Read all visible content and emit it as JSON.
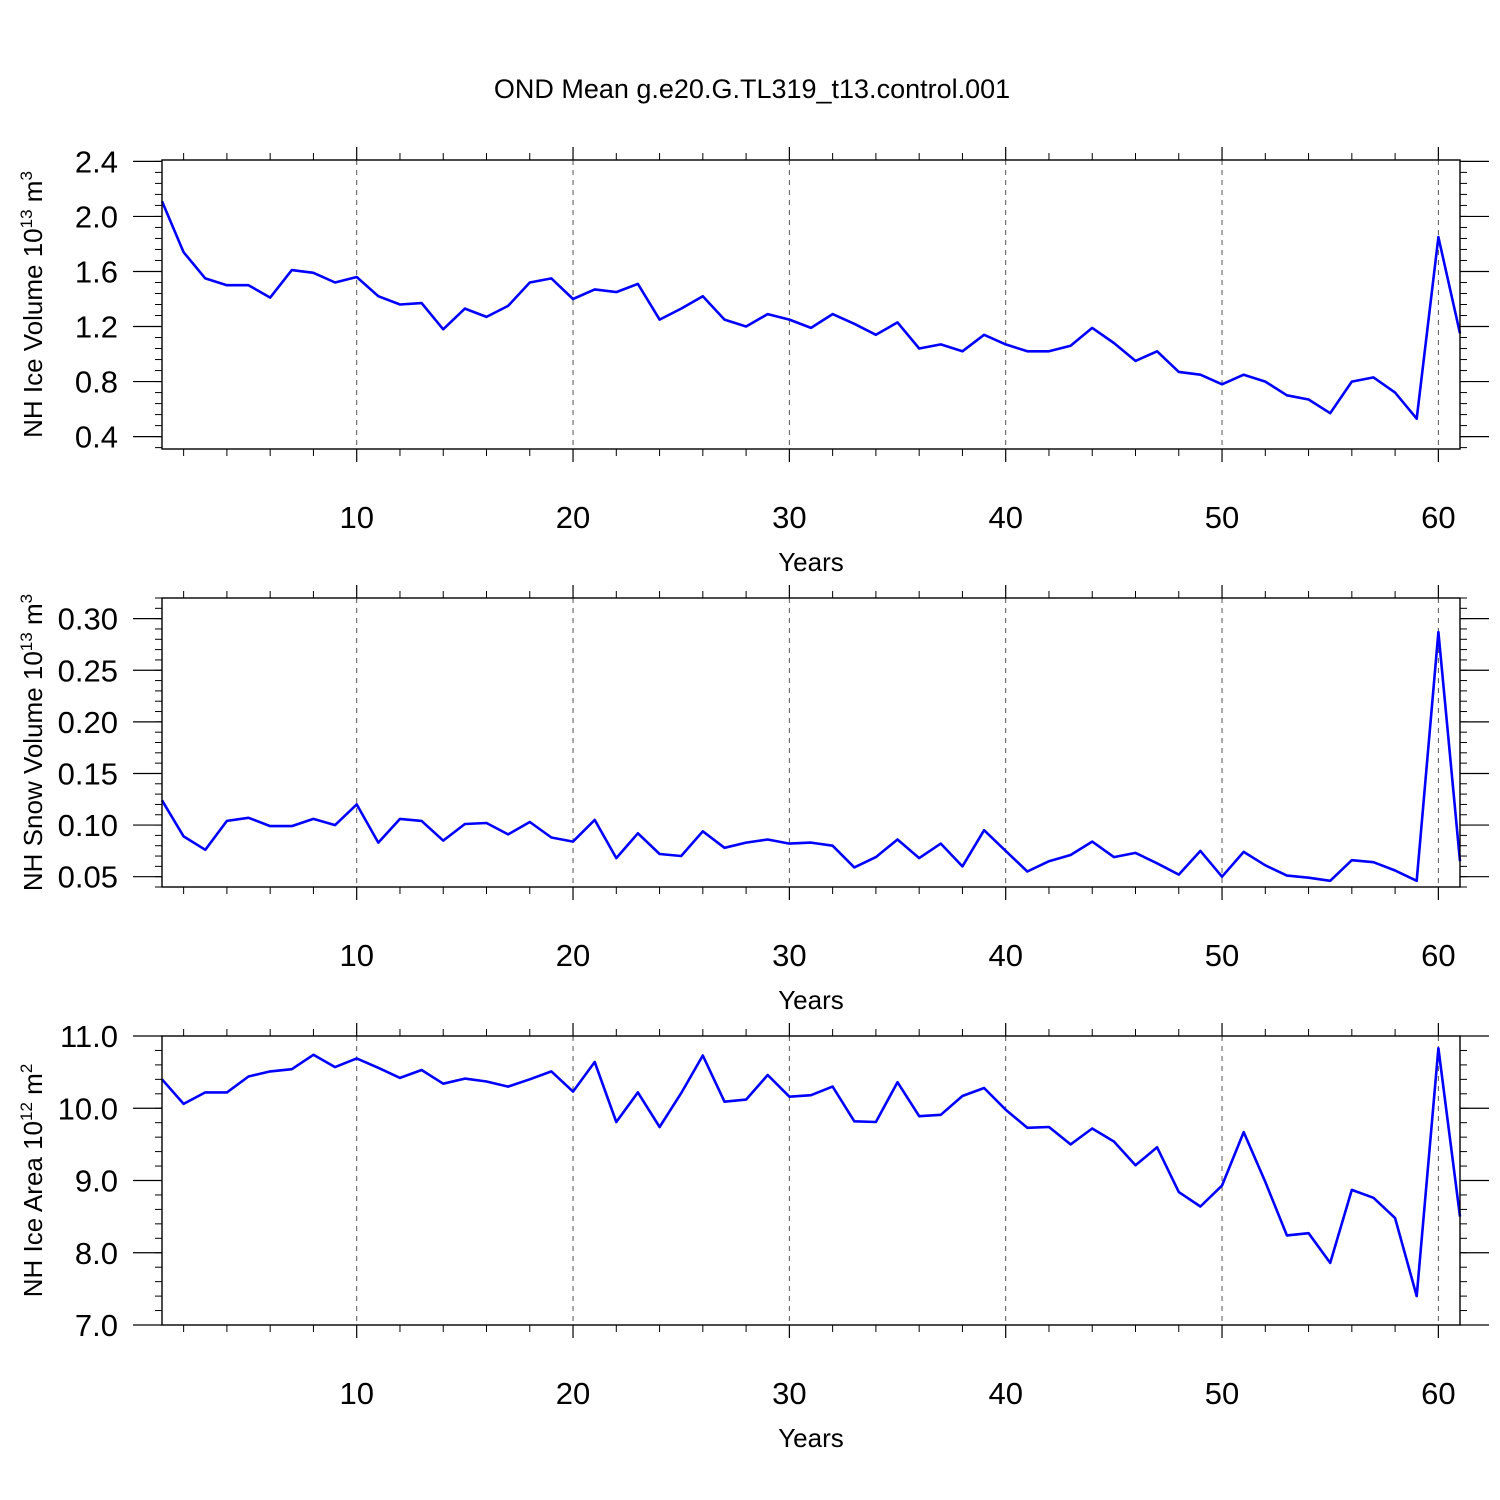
{
  "title": "OND Mean g.e20.G.TL319_t13.control.001",
  "line_color": "#0000ff",
  "chart_data": [
    {
      "type": "line",
      "ylabel_main": "NH Ice Volume 10",
      "ylabel_exp": "13",
      "ylabel_unit": " m",
      "ylabel_unit_exp": "3",
      "xlabel": "Years",
      "xlim": [
        1,
        61
      ],
      "ylim": [
        0.31,
        2.41
      ],
      "x_ticks": [
        10,
        20,
        30,
        40,
        50,
        60
      ],
      "x_tick_labels": [
        "10",
        "20",
        "30",
        "40",
        "50",
        "60"
      ],
      "y_ticks": [
        0.4,
        0.8,
        1.2,
        1.6,
        2.0,
        2.4
      ],
      "y_tick_labels": [
        "0.4",
        "0.8",
        "1.2",
        "1.6",
        "2.0",
        "2.4"
      ],
      "y_minor_step": 0.08,
      "grid": "vertical dashed at major x ticks",
      "series": [
        {
          "name": "NH Ice Volume",
          "x": [
            1,
            2,
            3,
            4,
            5,
            6,
            7,
            8,
            9,
            10,
            11,
            12,
            13,
            14,
            15,
            16,
            17,
            18,
            19,
            20,
            21,
            22,
            23,
            24,
            25,
            26,
            27,
            28,
            29,
            30,
            31,
            32,
            33,
            34,
            35,
            36,
            37,
            38,
            39,
            40,
            41,
            42,
            43,
            44,
            45,
            46,
            47,
            48,
            49,
            50,
            51,
            52,
            53,
            54,
            55,
            56,
            57,
            58,
            59,
            60,
            61
          ],
          "values": [
            2.11,
            1.74,
            1.55,
            1.5,
            1.5,
            1.41,
            1.61,
            1.59,
            1.52,
            1.56,
            1.42,
            1.36,
            1.37,
            1.18,
            1.33,
            1.27,
            1.35,
            1.52,
            1.55,
            1.4,
            1.47,
            1.45,
            1.51,
            1.25,
            1.33,
            1.42,
            1.25,
            1.2,
            1.29,
            1.25,
            1.19,
            1.29,
            1.22,
            1.14,
            1.23,
            1.04,
            1.07,
            1.02,
            1.14,
            1.07,
            1.02,
            1.02,
            1.06,
            1.19,
            1.08,
            0.95,
            1.02,
            0.87,
            0.85,
            0.78,
            0.85,
            0.8,
            0.7,
            0.67,
            0.57,
            0.8,
            0.83,
            0.72,
            0.53,
            1.85,
            1.15
          ]
        }
      ]
    },
    {
      "type": "line",
      "ylabel_main": "NH Snow Volume 10",
      "ylabel_exp": "13",
      "ylabel_unit": " m",
      "ylabel_unit_exp": "3",
      "xlabel": "Years",
      "xlim": [
        1,
        61
      ],
      "ylim": [
        0.04,
        0.32
      ],
      "x_ticks": [
        10,
        20,
        30,
        40,
        50,
        60
      ],
      "x_tick_labels": [
        "10",
        "20",
        "30",
        "40",
        "50",
        "60"
      ],
      "y_ticks": [
        0.05,
        0.1,
        0.15,
        0.2,
        0.25,
        0.3
      ],
      "y_tick_labels": [
        "0.05",
        "0.10",
        "0.15",
        "0.20",
        "0.25",
        "0.30"
      ],
      "y_minor_step": 0.01,
      "grid": "vertical dashed at major x ticks",
      "series": [
        {
          "name": "NH Snow Volume",
          "x": [
            1,
            2,
            3,
            4,
            5,
            6,
            7,
            8,
            9,
            10,
            11,
            12,
            13,
            14,
            15,
            16,
            17,
            18,
            19,
            20,
            21,
            22,
            23,
            24,
            25,
            26,
            27,
            28,
            29,
            30,
            31,
            32,
            33,
            34,
            35,
            36,
            37,
            38,
            39,
            40,
            41,
            42,
            43,
            44,
            45,
            46,
            47,
            48,
            49,
            50,
            51,
            52,
            53,
            54,
            55,
            56,
            57,
            58,
            59,
            60,
            61
          ],
          "values": [
            0.124,
            0.089,
            0.076,
            0.104,
            0.107,
            0.099,
            0.099,
            0.106,
            0.1,
            0.12,
            0.083,
            0.106,
            0.104,
            0.085,
            0.101,
            0.102,
            0.091,
            0.103,
            0.088,
            0.084,
            0.105,
            0.068,
            0.092,
            0.072,
            0.07,
            0.094,
            0.078,
            0.083,
            0.086,
            0.082,
            0.083,
            0.08,
            0.059,
            0.069,
            0.086,
            0.068,
            0.082,
            0.06,
            0.095,
            0.075,
            0.055,
            0.065,
            0.071,
            0.084,
            0.069,
            0.073,
            0.063,
            0.052,
            0.075,
            0.05,
            0.074,
            0.061,
            0.051,
            0.049,
            0.046,
            0.066,
            0.064,
            0.056,
            0.046,
            0.287,
            0.065
          ]
        }
      ]
    },
    {
      "type": "line",
      "ylabel_main": "NH Ice Area 10",
      "ylabel_exp": "12",
      "ylabel_unit": " m",
      "ylabel_unit_exp": "2",
      "xlabel": "Years",
      "xlim": [
        1,
        61
      ],
      "ylim": [
        7.0,
        11.0
      ],
      "x_ticks": [
        10,
        20,
        30,
        40,
        50,
        60
      ],
      "x_tick_labels": [
        "10",
        "20",
        "30",
        "40",
        "50",
        "60"
      ],
      "y_ticks": [
        7.0,
        8.0,
        9.0,
        10.0,
        11.0
      ],
      "y_tick_labels": [
        "7.0",
        "8.0",
        "9.0",
        "10.0",
        "11.0"
      ],
      "y_minor_step": 0.2,
      "grid": "vertical dashed at major x ticks",
      "series": [
        {
          "name": "NH Ice Area",
          "x": [
            1,
            2,
            3,
            4,
            5,
            6,
            7,
            8,
            9,
            10,
            11,
            12,
            13,
            14,
            15,
            16,
            17,
            18,
            19,
            20,
            21,
            22,
            23,
            24,
            25,
            26,
            27,
            28,
            29,
            30,
            31,
            32,
            33,
            34,
            35,
            36,
            37,
            38,
            39,
            40,
            41,
            42,
            43,
            44,
            45,
            46,
            47,
            48,
            49,
            50,
            51,
            52,
            53,
            54,
            55,
            56,
            57,
            58,
            59,
            60,
            61
          ],
          "values": [
            10.4,
            10.06,
            10.22,
            10.22,
            10.44,
            10.51,
            10.54,
            10.74,
            10.57,
            10.69,
            10.56,
            10.42,
            10.53,
            10.34,
            10.41,
            10.37,
            10.3,
            10.4,
            10.51,
            10.23,
            10.64,
            9.81,
            10.22,
            9.74,
            10.21,
            10.73,
            10.09,
            10.12,
            10.46,
            10.16,
            10.18,
            10.3,
            9.82,
            9.81,
            10.36,
            9.89,
            9.91,
            10.17,
            10.28,
            9.98,
            9.73,
            9.74,
            9.5,
            9.72,
            9.54,
            9.21,
            9.46,
            8.84,
            8.64,
            8.93,
            9.67,
            8.98,
            8.24,
            8.27,
            7.86,
            8.87,
            8.76,
            8.48,
            7.4,
            10.83,
            8.5
          ]
        }
      ]
    }
  ]
}
